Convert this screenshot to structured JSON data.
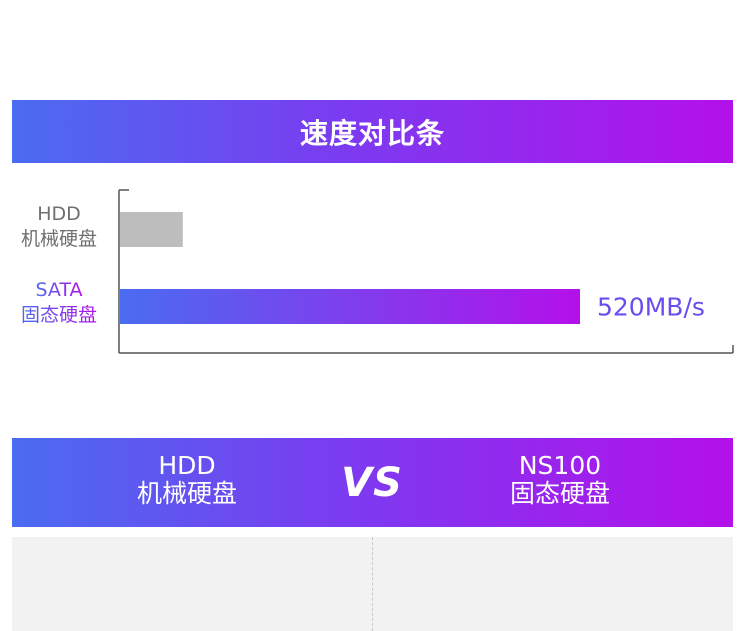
{
  "speed_section": {
    "title": "速度对比条"
  },
  "chart_data": {
    "type": "bar",
    "orientation": "horizontal",
    "categories": [
      "HDD 机械硬盘",
      "SATA 固态硬盘"
    ],
    "category_lines": [
      [
        "HDD",
        "机械硬盘"
      ],
      [
        "SATA",
        "固态硬盘"
      ]
    ],
    "values": [
      71,
      520
    ],
    "data_labels": [
      "",
      "520MB/s"
    ],
    "unit": "MB/s",
    "xlim": [
      0,
      700
    ],
    "title": "",
    "xlabel": "",
    "ylabel": "",
    "grid": false,
    "colors": {
      "hdd_bar": "#bdbdbd",
      "sata_bar_start": "#4a6cf0",
      "sata_bar_end": "#b410ea",
      "axis": "#555555",
      "data_label": "#6a4cf0"
    }
  },
  "comparison": {
    "left": {
      "line1": "HDD",
      "line2": "机械硬盘"
    },
    "vs": "VS",
    "right": {
      "line1": "NS100",
      "line2": "固态硬盘"
    }
  },
  "theme": {
    "gradient_start": "#4a6cf0",
    "gradient_end": "#b410ea"
  }
}
